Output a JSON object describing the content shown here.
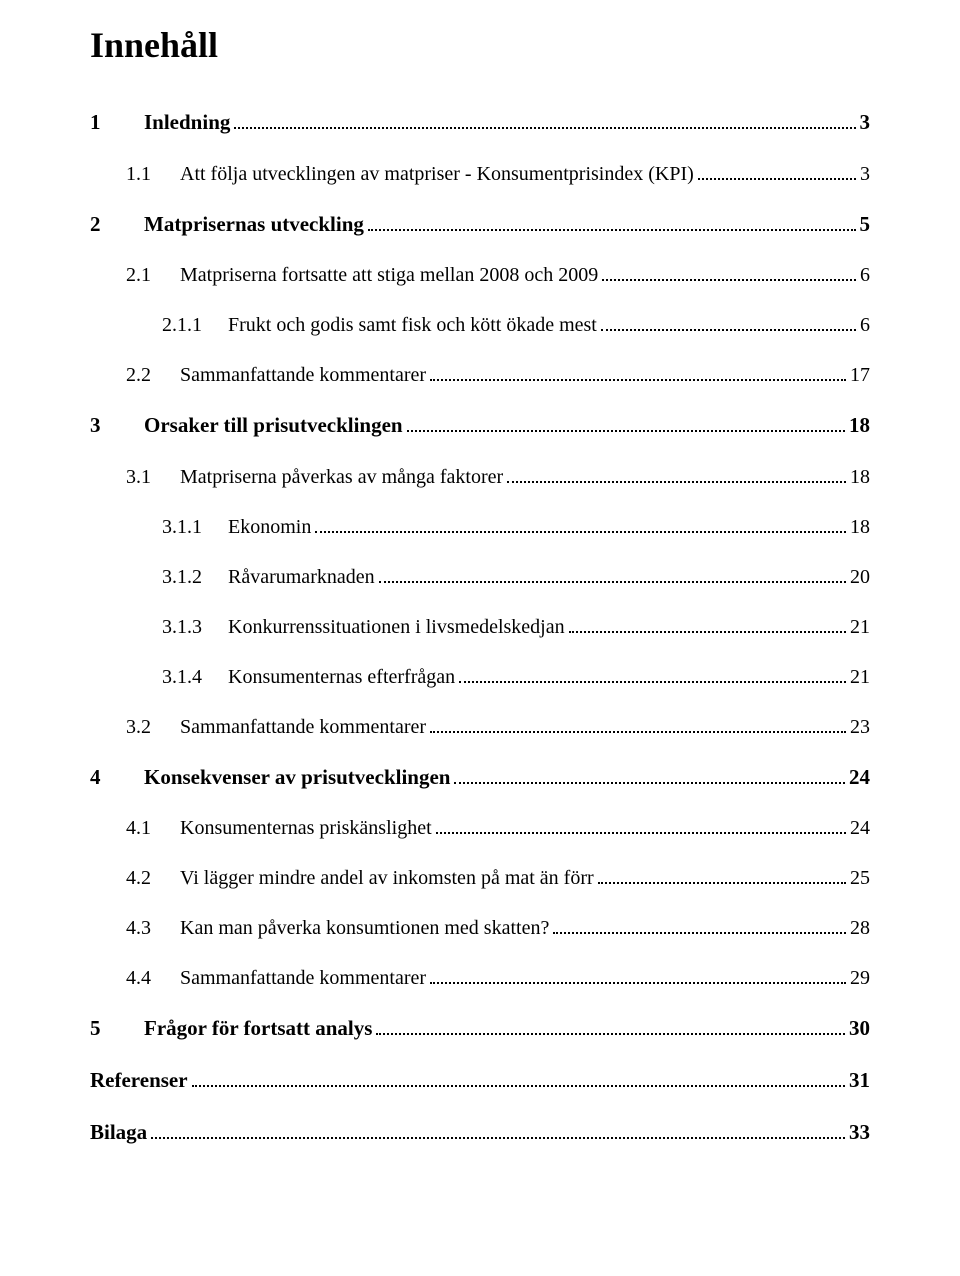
{
  "title": "Innehåll",
  "entries": [
    {
      "level": 1,
      "number": "1",
      "text": "Inledning",
      "page": "3"
    },
    {
      "level": 2,
      "number": "1.1",
      "text": "Att följa utvecklingen av matpriser - Konsumentprisindex (KPI)",
      "page": "3"
    },
    {
      "level": 1,
      "number": "2",
      "text": "Matprisernas utveckling",
      "page": "5"
    },
    {
      "level": 2,
      "number": "2.1",
      "text": "Matpriserna fortsatte att stiga mellan 2008 och 2009",
      "page": "6"
    },
    {
      "level": 3,
      "number": "2.1.1",
      "text": "Frukt och godis samt fisk och kött ökade mest",
      "page": "6"
    },
    {
      "level": 2,
      "number": "2.2",
      "text": "Sammanfattande kommentarer",
      "page": "17"
    },
    {
      "level": 1,
      "number": "3",
      "text": "Orsaker till prisutvecklingen",
      "page": "18"
    },
    {
      "level": 2,
      "number": "3.1",
      "text": "Matpriserna påverkas av många faktorer",
      "page": "18"
    },
    {
      "level": 3,
      "number": "3.1.1",
      "text": "Ekonomin",
      "page": "18"
    },
    {
      "level": 3,
      "number": "3.1.2",
      "text": "Råvarumarknaden",
      "page": "20"
    },
    {
      "level": 3,
      "number": "3.1.3",
      "text": "Konkurrenssituationen i livsmedelskedjan",
      "page": "21"
    },
    {
      "level": 3,
      "number": "3.1.4",
      "text": "Konsumenternas efterfrågan",
      "page": "21"
    },
    {
      "level": 2,
      "number": "3.2",
      "text": "Sammanfattande kommentarer",
      "page": "23"
    },
    {
      "level": 1,
      "number": "4",
      "text": "Konsekvenser av prisutvecklingen",
      "page": "24"
    },
    {
      "level": 2,
      "number": "4.1",
      "text": "Konsumenternas priskänslighet",
      "page": "24"
    },
    {
      "level": 2,
      "number": "4.2",
      "text": "Vi lägger mindre andel av inkomsten på mat än förr",
      "page": "25"
    },
    {
      "level": 2,
      "number": "4.3",
      "text": "Kan man påverka konsumtionen med skatten?",
      "page": "28"
    },
    {
      "level": 2,
      "number": "4.4",
      "text": "Sammanfattande kommentarer",
      "page": "29"
    },
    {
      "level": 1,
      "number": "5",
      "text": "Frågor för fortsatt analys",
      "page": "30"
    },
    {
      "level": "no-number",
      "number": "",
      "text": "Referenser",
      "page": "31"
    },
    {
      "level": "no-number",
      "number": "",
      "text": "Bilaga",
      "page": "33"
    }
  ]
}
